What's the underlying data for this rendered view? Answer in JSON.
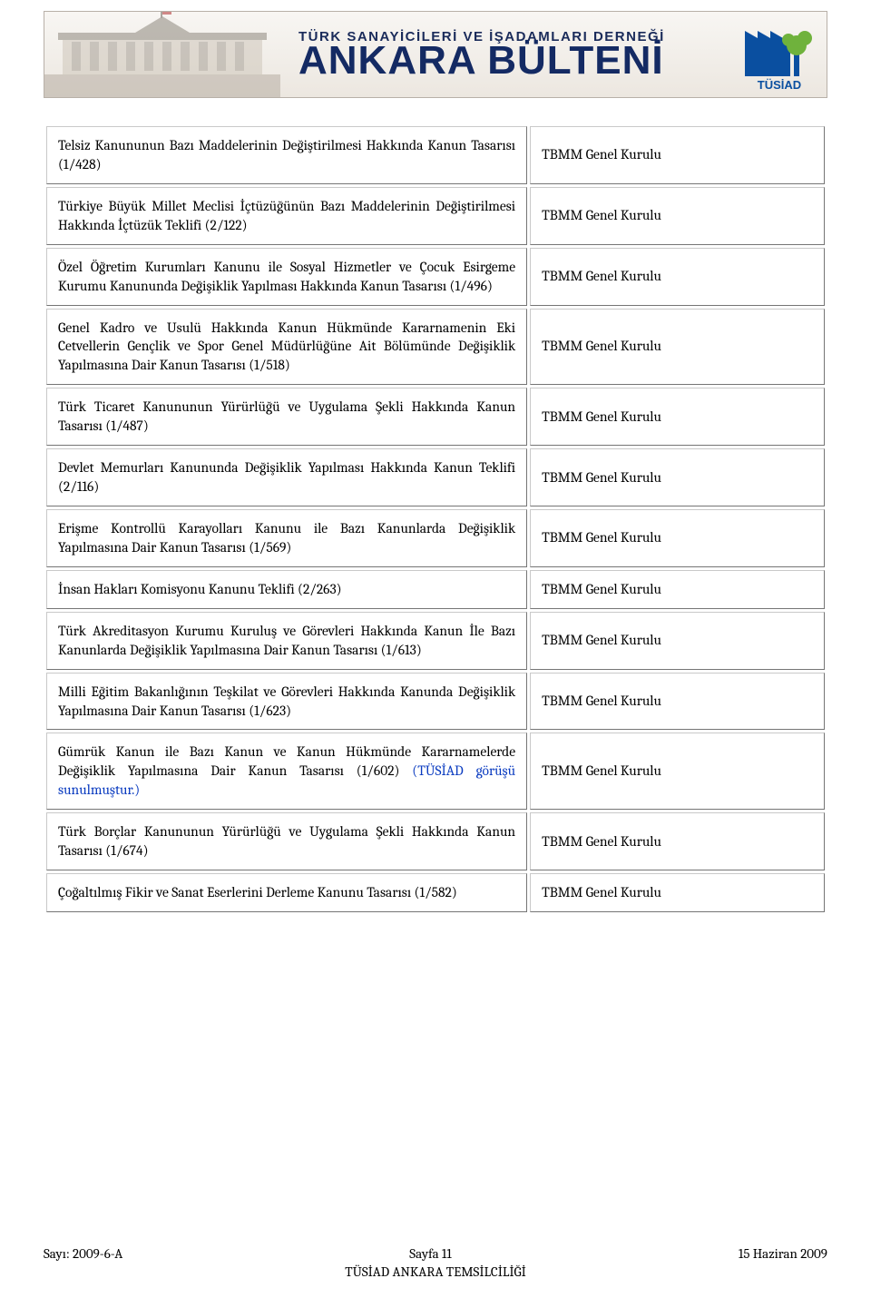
{
  "banner": {
    "subtitle": "TÜRK SANAYİCİLERİ VE İŞADAMLARI DERNEĞİ",
    "title": "ANKARA BÜLTENİ",
    "org_short": "TÜSİAD",
    "banner_bg_fill": "#9aa7b0",
    "banner_border": "#b8b0a8",
    "title_color": "#142a63",
    "logo_primary": "#0a4fa0",
    "logo_accent": "#6fb23c"
  },
  "status_label": "TBMM Genel Kurulu",
  "link_note_text": "(TÜSİAD görüşü sunulmuştur.)",
  "rows": [
    {
      "desc": "Telsiz Kanununun Bazı Maddelerinin Değiştirilmesi Hakkında Kanun Tasarısı (1/428)"
    },
    {
      "desc": "Türkiye Büyük Millet Meclisi İçtüzüğünün Bazı Maddelerinin Değiştirilmesi Hakkında İçtüzük Teklifi (2/122)"
    },
    {
      "desc": "Özel Öğretim Kurumları Kanunu ile Sosyal Hizmetler ve Çocuk Esirgeme Kurumu Kanununda Değişiklik Yapılması Hakkında Kanun Tasarısı (1/496)"
    },
    {
      "desc": "Genel Kadro ve Usulü Hakkında Kanun Hükmünde Kararnamenin Eki Cetvellerin Gençlik ve Spor Genel Müdürlüğüne Ait Bölümünde Değişiklik Yapılmasına Dair Kanun Tasarısı (1/518)"
    },
    {
      "desc": "Türk Ticaret Kanununun Yürürlüğü ve Uygulama Şekli Hakkında Kanun Tasarısı (1/487)"
    },
    {
      "desc": "Devlet Memurları Kanununda Değişiklik Yapılması Hakkında Kanun Teklifi (2/116)"
    },
    {
      "desc": "Erişme Kontrollü Karayolları Kanunu ile Bazı Kanunlarda Değişiklik Yapılmasına Dair Kanun Tasarısı (1/569)"
    },
    {
      "desc": "İnsan Hakları Komisyonu Kanunu Teklifi (2/263)"
    },
    {
      "desc": "Türk Akreditasyon Kurumu Kuruluş ve Görevleri Hakkında Kanun İle Bazı Kanunlarda Değişiklik Yapılmasına Dair Kanun Tasarısı (1/613)"
    },
    {
      "desc": "Milli Eğitim Bakanlığının Teşkilat ve Görevleri Hakkında Kanunda Değişiklik Yapılmasına Dair Kanun Tasarısı (1/623)"
    },
    {
      "desc": "Gümrük Kanun ile Bazı Kanun ve Kanun Hükmünde Kararnamelerde Değişiklik Yapılmasına Dair Kanun Tasarısı (1/602) ",
      "has_link": true
    },
    {
      "desc": "Türk Borçlar Kanununun Yürürlüğü ve Uygulama Şekli Hakkında Kanun Tasarısı (1/674)"
    },
    {
      "desc": "Çoğaltılmış Fikir ve Sanat Eserlerini Derleme Kanunu Tasarısı (1/582)"
    }
  ],
  "footer": {
    "issue": "Sayı: 2009-6-A",
    "page": "Sayfa 11",
    "date": "15 Haziran 2009",
    "org": "TÜSİAD ANKARA TEMSİLCİLİĞİ"
  }
}
